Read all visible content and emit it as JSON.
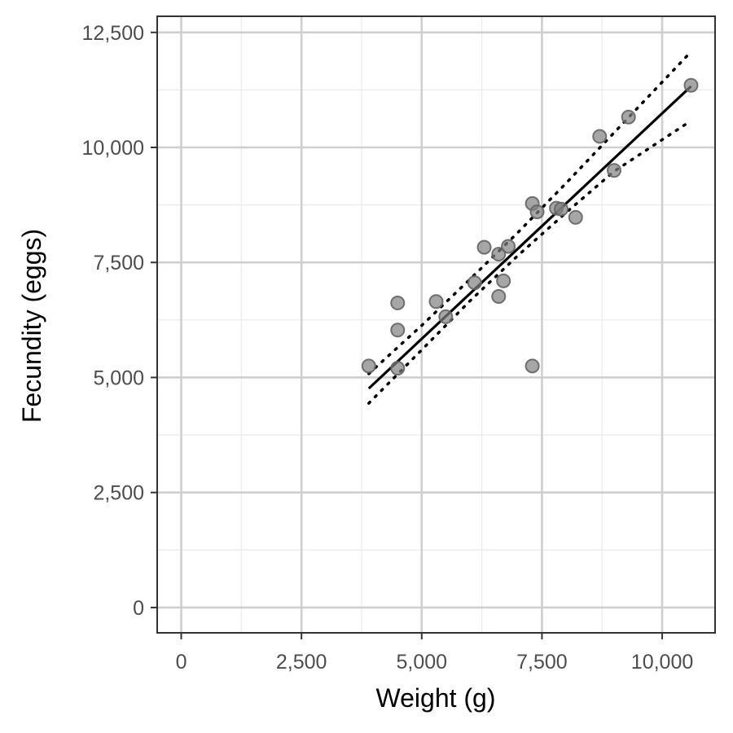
{
  "chart_data": {
    "type": "scatter",
    "title": "",
    "xlabel": "Weight (g)",
    "ylabel": "Fecundity (eggs)",
    "xlim": [
      -500,
      11100
    ],
    "ylim": [
      -550,
      12850
    ],
    "x_ticks": [
      0,
      2500,
      5000,
      7500,
      10000
    ],
    "x_tick_labels": [
      "0",
      "2,500",
      "5,000",
      "7,500",
      "10,000"
    ],
    "y_ticks": [
      0,
      2500,
      5000,
      7500,
      10000,
      12500
    ],
    "y_tick_labels": [
      "0",
      "2,500",
      "5,000",
      "7,500",
      "10,000",
      "12,500"
    ],
    "grid": true,
    "legend": "none",
    "points": [
      {
        "x": 3900,
        "y": 5250
      },
      {
        "x": 4500,
        "y": 6620
      },
      {
        "x": 4500,
        "y": 6030
      },
      {
        "x": 4500,
        "y": 5200
      },
      {
        "x": 5300,
        "y": 6650
      },
      {
        "x": 5500,
        "y": 6320
      },
      {
        "x": 6100,
        "y": 7060
      },
      {
        "x": 6300,
        "y": 7830
      },
      {
        "x": 6600,
        "y": 7680
      },
      {
        "x": 6600,
        "y": 6760
      },
      {
        "x": 6700,
        "y": 7100
      },
      {
        "x": 6800,
        "y": 7850
      },
      {
        "x": 7300,
        "y": 8780
      },
      {
        "x": 7300,
        "y": 5250
      },
      {
        "x": 7400,
        "y": 8600
      },
      {
        "x": 7800,
        "y": 8680
      },
      {
        "x": 7900,
        "y": 8660
      },
      {
        "x": 8200,
        "y": 8480
      },
      {
        "x": 8700,
        "y": 10240
      },
      {
        "x": 9000,
        "y": 9500
      },
      {
        "x": 9300,
        "y": 10660
      },
      {
        "x": 10600,
        "y": 11350
      }
    ],
    "fit_line": [
      {
        "x": 3900,
        "y": 4760
      },
      {
        "x": 10600,
        "y": 11330
      }
    ],
    "ci_upper": [
      {
        "x": 3900,
        "y": 5080
      },
      {
        "x": 5000,
        "y": 6130
      },
      {
        "x": 6000,
        "y": 7130
      },
      {
        "x": 7000,
        "y": 8150
      },
      {
        "x": 8000,
        "y": 9220
      },
      {
        "x": 9000,
        "y": 10320
      },
      {
        "x": 10600,
        "y": 12080
      }
    ],
    "ci_lower": [
      {
        "x": 3900,
        "y": 4440
      },
      {
        "x": 5000,
        "y": 5600
      },
      {
        "x": 6000,
        "y": 6660
      },
      {
        "x": 7000,
        "y": 7650
      },
      {
        "x": 8000,
        "y": 8580
      },
      {
        "x": 9000,
        "y": 9480
      },
      {
        "x": 10600,
        "y": 10580
      }
    ]
  }
}
